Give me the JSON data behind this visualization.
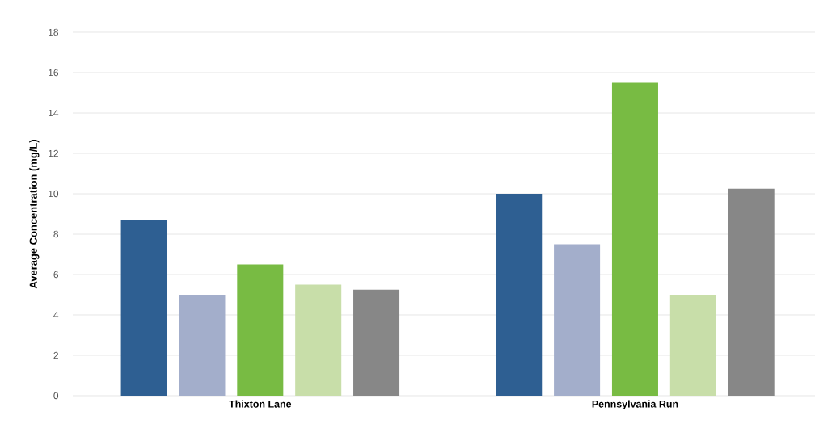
{
  "chart_data": {
    "type": "bar",
    "ylabel": "Average Concentration (mg/L)",
    "categories": [
      "Thixton Lane",
      "Pennsylvania Run"
    ],
    "series": [
      {
        "color": "#2e5f92",
        "values": [
          8.7,
          10.0
        ]
      },
      {
        "color": "#a3aecb",
        "values": [
          5.0,
          7.5
        ]
      },
      {
        "color": "#78bb43",
        "values": [
          6.5,
          15.5
        ]
      },
      {
        "color": "#c8dea9",
        "values": [
          5.5,
          5.0
        ]
      },
      {
        "color": "#878787",
        "values": [
          5.25,
          10.25
        ]
      }
    ],
    "ylim": [
      0,
      18
    ],
    "yticks": [
      0,
      2,
      4,
      6,
      8,
      10,
      12,
      14,
      16,
      18
    ],
    "grid": "y"
  }
}
